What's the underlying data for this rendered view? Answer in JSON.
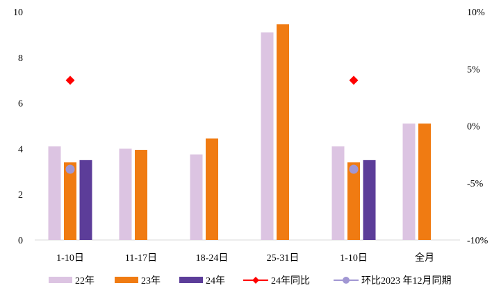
{
  "chart_data": {
    "type": "bar",
    "categories": [
      "1-10日",
      "11-17日",
      "18-24日",
      "25-31日",
      "1-10日",
      "全月"
    ],
    "series": [
      {
        "name": "22年",
        "kind": "bar",
        "axis": "left",
        "color": "#dcc4e2",
        "values": [
          4.1,
          4.0,
          3.75,
          9.1,
          4.1,
          5.1
        ]
      },
      {
        "name": "23年",
        "kind": "bar",
        "axis": "left",
        "color": "#f07b12",
        "values": [
          3.4,
          3.95,
          4.45,
          9.45,
          3.4,
          5.1
        ]
      },
      {
        "name": "24年",
        "kind": "bar",
        "axis": "left",
        "color": "#5c3d99",
        "values": [
          3.5,
          null,
          null,
          null,
          3.5,
          null
        ]
      },
      {
        "name": "24年同比",
        "kind": "marker-line",
        "axis": "right",
        "color": "#ff0000",
        "marker": "diamond",
        "values": [
          4.0,
          null,
          null,
          null,
          4.0,
          null
        ]
      },
      {
        "name": "环比2023 年12月同期",
        "kind": "marker-line",
        "axis": "right",
        "color": "#a197d3",
        "marker": "circle",
        "values": [
          -3.8,
          null,
          null,
          null,
          -3.8,
          null
        ]
      }
    ],
    "y_left": {
      "min": 0,
      "max": 10,
      "ticks": [
        "0",
        "2",
        "4",
        "6",
        "8",
        "10"
      ]
    },
    "y_right": {
      "min": -10,
      "max": 10,
      "ticks": [
        "-10%",
        "-5%",
        "0%",
        "5%",
        "10%"
      ]
    },
    "grid": false,
    "legend_position": "bottom",
    "title": "",
    "xlabel": "",
    "ylabel": ""
  }
}
